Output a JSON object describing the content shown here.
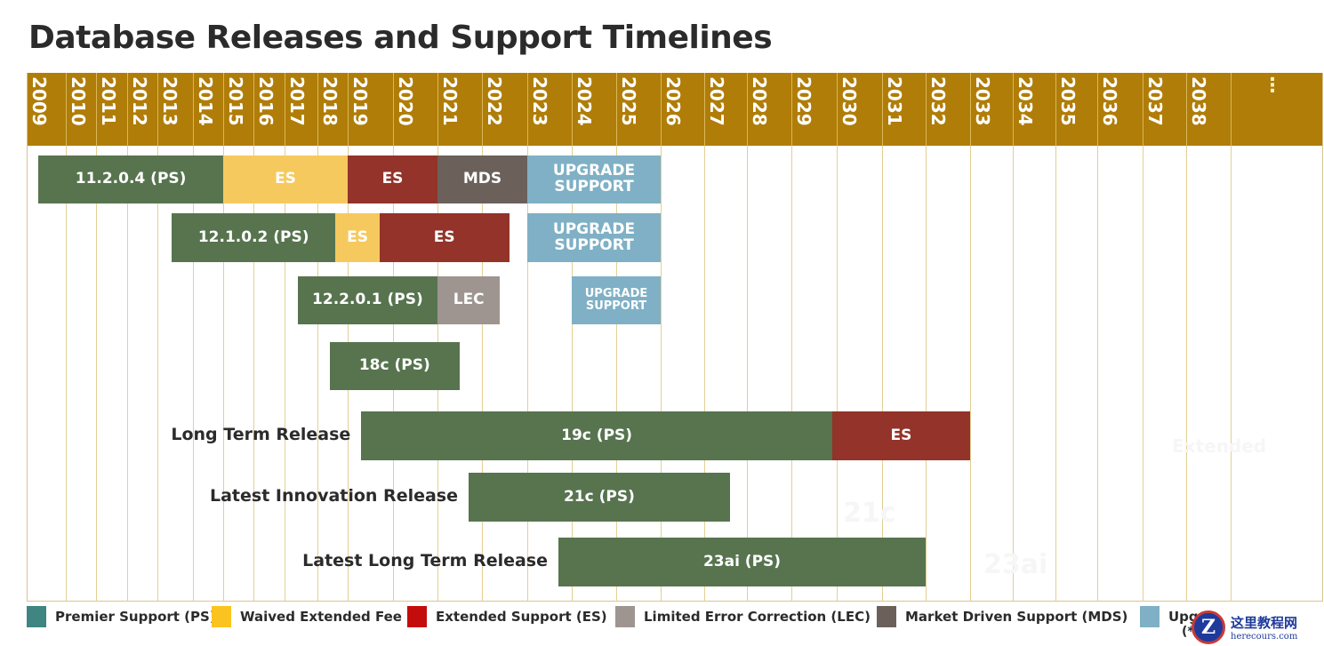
{
  "title": "Database Releases and Support Timelines",
  "chart_data": {
    "type": "gantt",
    "title": "Database Releases and Support Timelines",
    "x_axis": {
      "unit": "year",
      "ticks": [
        "2009",
        "2010",
        "2011",
        "2012",
        "2013",
        "2014",
        "2015",
        "2016",
        "2017",
        "2018",
        "2019",
        "2020",
        "2021",
        "2022",
        "2023",
        "2024",
        "2025",
        "2026",
        "2027",
        "2028",
        "2029",
        "2030",
        "2031",
        "2032",
        "2033",
        "2034",
        "2035",
        "2036",
        "2037",
        "2038"
      ],
      "continuation_marker": "⋮",
      "range": [
        2009,
        2040
      ]
    },
    "rows": [
      {
        "label": "",
        "segments": [
          {
            "text": "11.2.0.4 (PS)",
            "type": "PS",
            "start": 2009.3,
            "end": 2015.0
          },
          {
            "text": "ES",
            "type": "WAIVED",
            "start": 2015.0,
            "end": 2019.0
          },
          {
            "text": "ES",
            "type": "ES",
            "start": 2019.0,
            "end": 2021.0
          },
          {
            "text": "MDS",
            "type": "MDS",
            "start": 2021.0,
            "end": 2023.0
          },
          {
            "text": "UPGRADE SUPPORT",
            "type": "UPGRADE",
            "start": 2023.0,
            "end": 2026.0
          }
        ]
      },
      {
        "label": "",
        "segments": [
          {
            "text": "12.1.0.2 (PS)",
            "type": "PS",
            "start": 2013.4,
            "end": 2018.6
          },
          {
            "text": "ES",
            "type": "WAIVED",
            "start": 2018.6,
            "end": 2019.7
          },
          {
            "text": "ES",
            "type": "ES",
            "start": 2019.7,
            "end": 2022.6
          },
          {
            "text": "UPGRADE SUPPORT",
            "type": "UPGRADE",
            "start": 2023.0,
            "end": 2026.0
          }
        ]
      },
      {
        "label": "",
        "segments": [
          {
            "text": "12.2.0.1 (PS)",
            "type": "PS",
            "start": 2017.4,
            "end": 2021.0
          },
          {
            "text": "LEC",
            "type": "LEC",
            "start": 2021.0,
            "end": 2022.4
          },
          {
            "text": "UPGRADE SUPPORT",
            "type": "UPGRADE",
            "start": 2024.0,
            "end": 2026.0
          }
        ]
      },
      {
        "label": "",
        "segments": [
          {
            "text": "18c (PS)",
            "type": "PS",
            "start": 2018.4,
            "end": 2021.5
          }
        ]
      },
      {
        "label": "Long Term Release",
        "segments": [
          {
            "text": "19c (PS)",
            "type": "PS",
            "start": 2019.3,
            "end": 2029.9
          },
          {
            "text": "ES",
            "type": "ES",
            "start": 2029.9,
            "end": 2033.0
          }
        ]
      },
      {
        "label": "Latest Innovation Release",
        "segments": [
          {
            "text": "21c (PS)",
            "type": "PS",
            "start": 2021.7,
            "end": 2027.6
          }
        ]
      },
      {
        "label": "Latest Long Term Release",
        "segments": [
          {
            "text": "23ai (PS)",
            "type": "PS",
            "start": 2023.7,
            "end": 2032.0
          }
        ]
      }
    ],
    "ghost_text": [
      "Extended",
      "21c",
      "23ai"
    ],
    "legend": [
      {
        "key": "PS",
        "label": "Premier Support (PS)",
        "color": "#3f8581"
      },
      {
        "key": "WAIVED",
        "label": "Waived Extended Fee",
        "color": "#fbc320"
      },
      {
        "key": "ES",
        "label": "Extended Support (ES)",
        "color": "#c40c0c"
      },
      {
        "key": "LEC",
        "label": "Limited Error Correction (LEC)",
        "color": "#9e9590"
      },
      {
        "key": "MDS",
        "label": "Market Driven Support (MDS)",
        "color": "#6b615a"
      },
      {
        "key": "UPGRADE",
        "label": "Upg",
        "color": "#7fb0c5"
      }
    ],
    "legend_placement": "bottom",
    "legend_overflow_text": "(*",
    "bar_colors": {
      "PS": "#57744f",
      "WAIVED": "#f6c95f",
      "ES": "#933329",
      "LEC": "#9e9590",
      "MDS": "#6b615a",
      "UPGRADE": "#7fb0c5"
    }
  },
  "watermark": {
    "logo": "Z",
    "cn": "这里教程网",
    "en": "herecours.com"
  }
}
